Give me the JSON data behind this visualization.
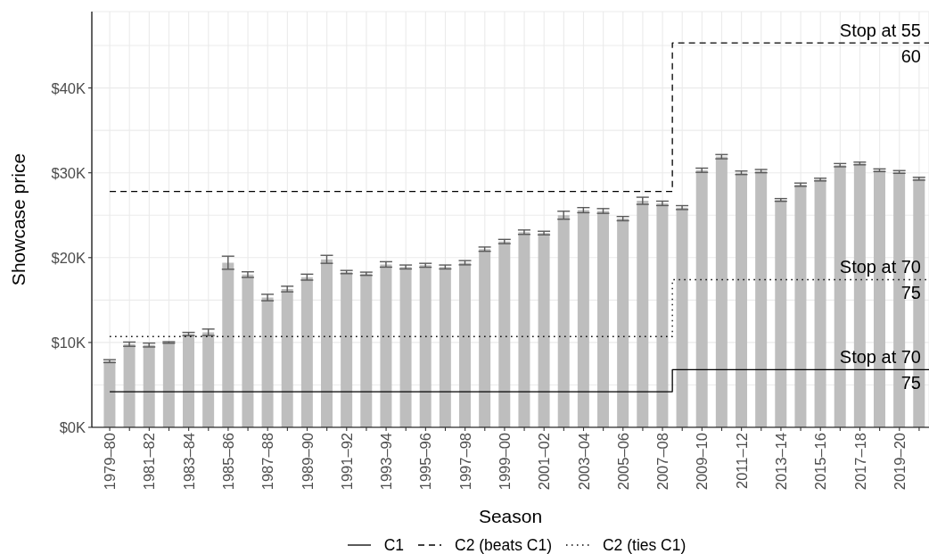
{
  "chart_data": {
    "type": "bar",
    "xlabel": "Season",
    "ylabel": "Showcase price",
    "categories": [
      "1979–80",
      null,
      "1981–82",
      null,
      "1983–84",
      null,
      "1985–86",
      null,
      "1987–88",
      null,
      "1989–90",
      null,
      "1991–92",
      null,
      "1993–94",
      null,
      "1995–96",
      null,
      "1997–98",
      null,
      "1999–00",
      null,
      "2001–02",
      null,
      "2003–04",
      null,
      "2005–06",
      null,
      "2007–08",
      null,
      "2009–10",
      null,
      "2011–12",
      null,
      "2013–14",
      null,
      "2015–16",
      null,
      "2017–18",
      null,
      "2019–20",
      null
    ],
    "series": [
      {
        "color": "#bebebe",
        "values": [
          7800,
          9800,
          9700,
          10000,
          11000,
          11200,
          19400,
          18000,
          15300,
          16300,
          17700,
          19800,
          18300,
          18100,
          19200,
          18900,
          19100,
          18900,
          19400,
          21000,
          21900,
          23000,
          22900,
          25000,
          25600,
          25500,
          24600,
          26700,
          26400,
          25900,
          30300,
          31900,
          30000,
          30200,
          26800,
          28600,
          29200,
          30900,
          31100,
          30300,
          30100,
          29300
        ],
        "errors": [
          170,
          250,
          230,
          90,
          190,
          380,
          770,
          330,
          380,
          330,
          350,
          470,
          190,
          190,
          320,
          230,
          230,
          230,
          250,
          250,
          250,
          260,
          210,
          470,
          300,
          280,
          250,
          420,
          260,
          230,
          250,
          250,
          210,
          190,
          160,
          190,
          160,
          190,
          160,
          160,
          160,
          170
        ]
      },
      {
        "type": "step",
        "name": "C1",
        "color": "#000000",
        "line_style": "solid",
        "values": [
          4200,
          4200,
          4200,
          4200,
          4200,
          4200,
          4200,
          4200,
          4200,
          4200,
          4200,
          4200,
          4200,
          4200,
          4200,
          4200,
          4200,
          4200,
          4200,
          4200,
          4200,
          4200,
          4200,
          4200,
          4200,
          4200,
          4200,
          4200,
          4200,
          6800,
          6800,
          6800,
          6800,
          6800,
          6800,
          6800,
          6800,
          6800,
          6800,
          6800,
          6800,
          6800
        ]
      },
      {
        "type": "step",
        "name": "C2 (beats C1)",
        "color": "#000000",
        "line_style": "dashed",
        "values": [
          27800,
          27800,
          27800,
          27800,
          27800,
          27800,
          27800,
          27800,
          27800,
          27800,
          27800,
          27800,
          27800,
          27800,
          27800,
          27800,
          27800,
          27800,
          27800,
          27800,
          27800,
          27800,
          27800,
          27800,
          27800,
          27800,
          27800,
          27800,
          27800,
          45300,
          45300,
          45300,
          45300,
          45300,
          45300,
          45300,
          45300,
          45300,
          45300,
          45300,
          45300,
          45300
        ]
      },
      {
        "type": "step",
        "name": "C2 (ties C1)",
        "color": "#000000",
        "line_style": "dotted",
        "values": [
          10700,
          10700,
          10700,
          10700,
          10700,
          10700,
          10700,
          10700,
          10700,
          10700,
          10700,
          10700,
          10700,
          10700,
          10700,
          10700,
          10700,
          10700,
          10700,
          10700,
          10700,
          10700,
          10700,
          10700,
          10700,
          10700,
          10700,
          10700,
          10700,
          17400,
          17400,
          17400,
          17400,
          17400,
          17400,
          17400,
          17400,
          17400,
          17400,
          17400,
          17400,
          17400
        ]
      }
    ],
    "ylim": [
      0,
      49000
    ],
    "yticks": [
      {
        "value": 0,
        "label": "$0K"
      },
      {
        "value": 5000,
        "label": null
      },
      {
        "value": 10000,
        "label": "$10K"
      },
      {
        "value": 15000,
        "label": null
      },
      {
        "value": 20000,
        "label": "$20K"
      },
      {
        "value": 25000,
        "label": null
      },
      {
        "value": 30000,
        "label": "$30K"
      },
      {
        "value": 35000,
        "label": null
      },
      {
        "value": 40000,
        "label": "$40K"
      },
      {
        "value": 45000,
        "label": null
      }
    ],
    "grid": true,
    "legend": "bottom",
    "annotations": [
      {
        "text": "Stop at 55\n60",
        "y": 45300
      },
      {
        "text": "Stop at 70\n75",
        "y": 17400
      },
      {
        "text": "Stop at 70\n75",
        "y": 6800
      }
    ]
  }
}
